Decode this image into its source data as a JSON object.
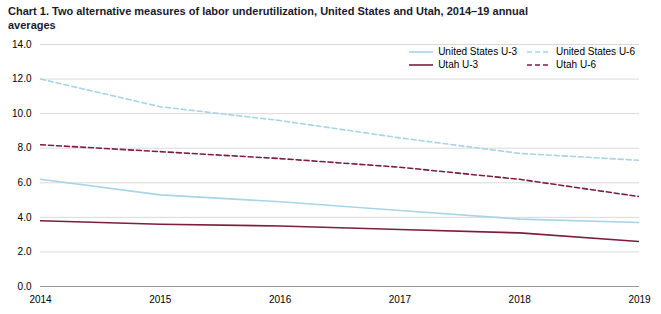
{
  "chart_data": {
    "type": "line",
    "title": "Chart 1. Two alternative measures of labor underutilization, United States and Utah, 2014–19  annual",
    "subtitle": "averages",
    "title_color": "#1a1a2e",
    "x": [
      2014,
      2015,
      2016,
      2017,
      2018,
      2019
    ],
    "series": [
      {
        "name": "United States  U-3",
        "color": "#a8d4e6",
        "line_style": "solid",
        "values": [
          6.2,
          5.3,
          4.9,
          4.4,
          3.9,
          3.7
        ]
      },
      {
        "name": "United States  U-6",
        "color": "#a8d4e6",
        "line_style": "dashed",
        "values": [
          12.0,
          10.4,
          9.6,
          8.6,
          7.7,
          7.3
        ]
      },
      {
        "name": "Utah  U-3",
        "color": "#7b1f3a",
        "line_style": "solid",
        "values": [
          3.8,
          3.6,
          3.5,
          3.3,
          3.1,
          2.6
        ]
      },
      {
        "name": "Utah  U-6",
        "color": "#7b1f3a",
        "line_style": "dashed",
        "values": [
          8.2,
          7.8,
          7.4,
          6.9,
          6.2,
          5.2
        ]
      }
    ],
    "xlim": [
      2014,
      2019
    ],
    "xticks": [
      2014,
      2015,
      2016,
      2017,
      2018,
      2019
    ],
    "ylim": [
      0,
      14
    ],
    "yticks": [
      {
        "value": 0,
        "label": "0.0"
      },
      {
        "value": 2,
        "label": "2.0"
      },
      {
        "value": 4,
        "label": "4.0"
      },
      {
        "value": 6,
        "label": "6.0"
      },
      {
        "value": 8,
        "label": "8.0"
      },
      {
        "value": 10,
        "label": "10.0"
      },
      {
        "value": 12,
        "label": "12.0"
      },
      {
        "value": 14,
        "label": "14.0"
      }
    ],
    "grid": true,
    "legend": "upper right"
  }
}
